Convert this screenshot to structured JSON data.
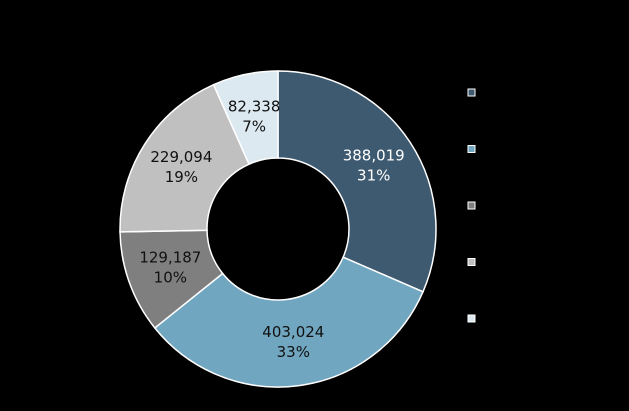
{
  "chart_data": {
    "type": "donut",
    "values": [
      388019,
      403024,
      129187,
      229094,
      82338
    ],
    "value_labels": [
      "388,019",
      "403,024",
      "129,187",
      "229,094",
      "82,338"
    ],
    "percent_labels": [
      "31%",
      "33%",
      "10%",
      "19%",
      "7%"
    ],
    "colors": [
      "#3e5a70",
      "#70a6c0",
      "#7f7f7f",
      "#c0c0c0",
      "#dde9f1"
    ],
    "legend": "right"
  }
}
